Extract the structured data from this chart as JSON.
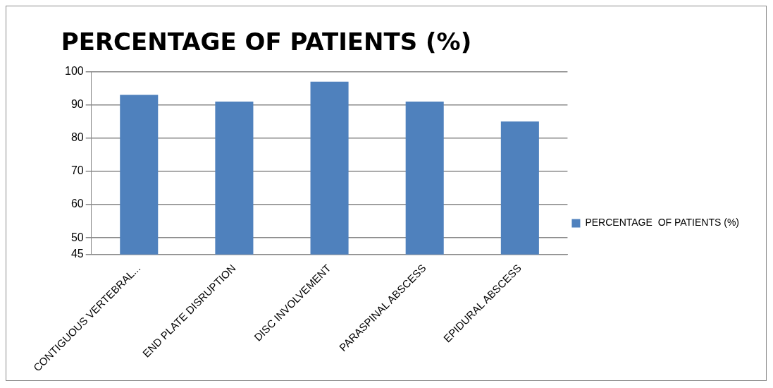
{
  "chart_data": {
    "type": "bar",
    "title": "PERCENTAGE OF PATIENTS (%)",
    "categories": [
      "CONTIGUOUS VERTEBRAL...",
      "END PLATE DISRUPTION",
      "DISC INVOLVEMENT",
      "PARASPINAL ABSCESS",
      "EPIDURAL ABSCESS"
    ],
    "series": [
      {
        "name": "PERCENTAGE  OF PATIENTS (%)",
        "color": "#4f81bd",
        "values": [
          93,
          91,
          97,
          91,
          85
        ]
      }
    ],
    "ylim": [
      45,
      100
    ],
    "yticks": [
      45,
      50,
      60,
      70,
      80,
      90,
      100
    ],
    "grid": "y",
    "legend": "right"
  }
}
